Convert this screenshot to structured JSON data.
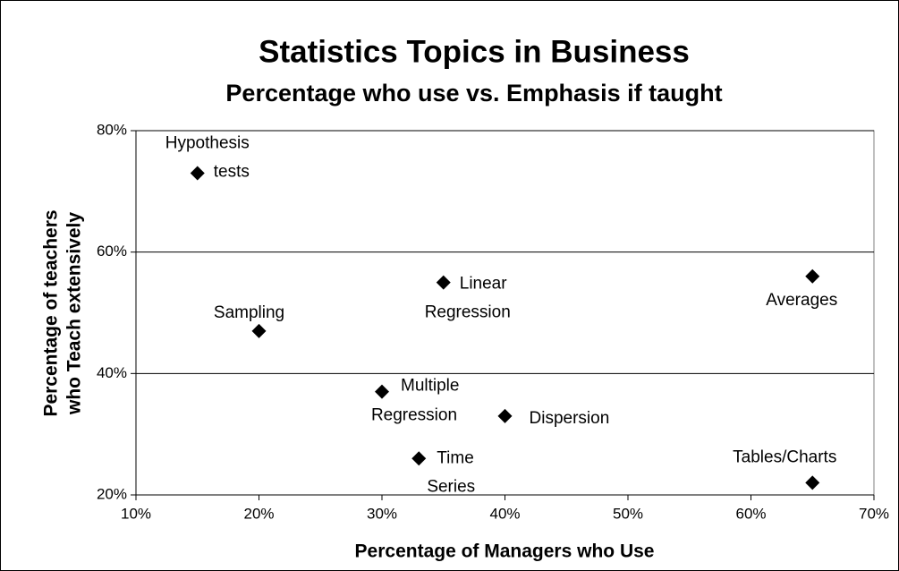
{
  "chart_data": {
    "type": "scatter",
    "title": "Statistics Topics in Business",
    "subtitle": "Percentage who use vs. Emphasis if taught",
    "x_label": "Percentage of Managers who Use",
    "y_label": [
      "Percentage of teachers",
      "who Teach extensively"
    ],
    "labels": [
      [
        "Hypothesis",
        "tests"
      ],
      [
        "Sampling"
      ],
      [
        "Linear",
        "Regression"
      ],
      [
        "Averages"
      ],
      [
        "Multiple",
        "Regression"
      ],
      [
        "Dispersion"
      ],
      [
        "Time",
        "Series"
      ],
      [
        "Tables/Charts"
      ]
    ],
    "x": [
      15,
      20,
      35,
      65,
      30,
      40,
      33,
      65
    ],
    "values": [
      73,
      47,
      55,
      56,
      37,
      33,
      26,
      22
    ],
    "color": "#000000",
    "xlim": [
      10,
      70
    ],
    "xticks": [
      {
        "value": 10,
        "label": "10%"
      },
      {
        "value": 20,
        "label": "20%"
      },
      {
        "value": 30,
        "label": "30%"
      },
      {
        "value": 40,
        "label": "40%"
      },
      {
        "value": 50,
        "label": "50%"
      },
      {
        "value": 60,
        "label": "60%"
      },
      {
        "value": 70,
        "label": "70%"
      }
    ],
    "ylim": [
      20,
      80
    ],
    "yticks": [
      {
        "value": 20,
        "label": "20%"
      },
      {
        "value": 40,
        "label": "40%"
      },
      {
        "value": 60,
        "label": "60%"
      },
      {
        "value": 80,
        "label": "80%"
      }
    ],
    "grid": true
  }
}
